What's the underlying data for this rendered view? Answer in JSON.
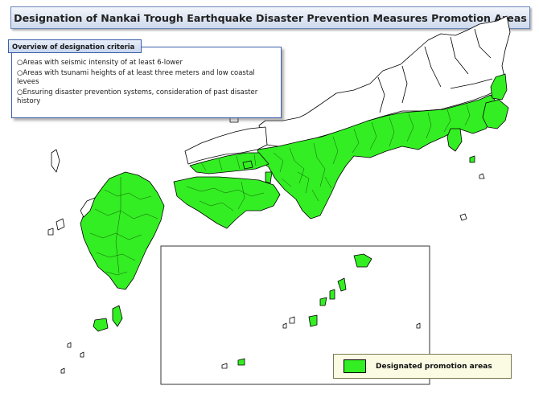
{
  "title": "Designation of Nankai Trough Earthquake Disaster Prevention Measures Promotion Areas",
  "criteria": {
    "heading": "Overview of designation criteria",
    "items": [
      "○Areas with  seismic intensity of at least 6-lower",
      "○Areas with  tsunami heights of at least three meters and low coastal levees",
      "○Ensuring disaster prevention systems, consideration of past disaster history"
    ]
  },
  "legend": {
    "label": "Designated promotion areas",
    "color": "#33ee22"
  },
  "colors": {
    "designated": "#33ee22",
    "land": "#ffffff",
    "boundary": "#000000",
    "title_bg_top": "#f3f6fb",
    "title_bg_bottom": "#cdd9ec",
    "accent_border": "#3b5ea8"
  }
}
